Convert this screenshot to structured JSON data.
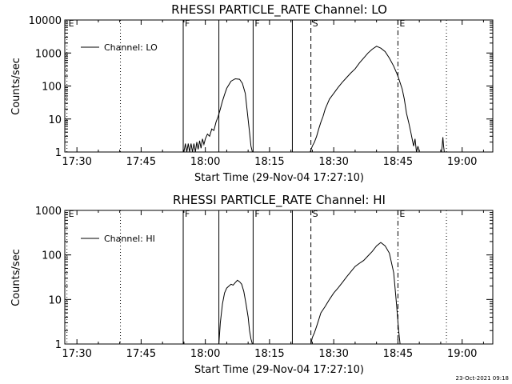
{
  "chart_data": [
    {
      "type": "line",
      "title": "RHESSI PARTICLE_RATE Channel: LO",
      "xlabel": "Start Time (29-Nov-04 17:27:10)",
      "ylabel": "Counts/sec",
      "y_scale": "log",
      "ylim": [
        1,
        10000
      ],
      "xlim": [
        "17:27:10",
        "19:07:10"
      ],
      "x_ticks": [
        "17:30",
        "17:45",
        "18:00",
        "18:15",
        "18:30",
        "18:45",
        "19:00"
      ],
      "y_ticks": [
        "1",
        "10",
        "100",
        "1000",
        "10000"
      ],
      "legend": {
        "position": "top-left",
        "entries": [
          "Channel: LO"
        ]
      },
      "markers": [
        {
          "time": "17:27:40",
          "label": "E",
          "style": "dotted"
        },
        {
          "time": "17:40:10",
          "label": "",
          "style": "dotted"
        },
        {
          "time": "17:54:50",
          "label": "F",
          "style": "solid"
        },
        {
          "time": "18:03:10",
          "label": "",
          "style": "solid"
        },
        {
          "time": "18:11:10",
          "label": "F",
          "style": "solid"
        },
        {
          "time": "18:20:20",
          "label": "",
          "style": "solid"
        },
        {
          "time": "18:24:40",
          "label": "S",
          "style": "dashed"
        },
        {
          "time": "18:45:00",
          "label": "E",
          "style": "dashdot"
        },
        {
          "time": "18:56:20",
          "label": "",
          "style": "dotted"
        }
      ],
      "series": [
        {
          "name": "Channel: LO",
          "x": [
            "17:55:00",
            "17:55:20",
            "17:55:40",
            "17:56:00",
            "17:56:20",
            "17:56:40",
            "17:57:00",
            "17:57:20",
            "17:57:40",
            "17:58:00",
            "17:58:20",
            "17:58:40",
            "17:59:00",
            "17:59:20",
            "17:59:40",
            "18:00:00",
            "18:00:30",
            "18:01:00",
            "18:01:30",
            "18:02:00",
            "18:02:30",
            "18:03:00",
            "18:03:30",
            "18:04:00",
            "18:04:30",
            "18:05:00",
            "18:06:00",
            "18:07:00",
            "18:08:00",
            "18:08:40",
            "18:09:20",
            "18:09:50",
            "18:10:20",
            "18:10:40",
            "18:11:00",
            "18:11:10"
          ],
          "y": [
            1,
            1.8,
            1,
            1.8,
            1,
            1.8,
            1,
            1.8,
            1,
            2,
            1.2,
            2.2,
            1.3,
            2.5,
            1.7,
            2.5,
            3.5,
            3,
            5,
            4.5,
            8,
            12,
            20,
            35,
            55,
            85,
            140,
            165,
            160,
            120,
            60,
            15,
            4,
            1.5,
            1,
            1
          ]
        },
        {
          "name": "Channel: LO",
          "x": [
            "18:24:30",
            "18:25:00",
            "18:25:30",
            "18:26:00",
            "18:26:30",
            "18:27:00",
            "18:27:30",
            "18:28:00",
            "18:29:00",
            "18:30:00",
            "18:31:00",
            "18:32:00",
            "18:33:00",
            "18:34:00",
            "18:35:00",
            "18:36:00",
            "18:37:00",
            "18:38:00",
            "18:39:00",
            "18:40:00",
            "18:41:00",
            "18:42:00",
            "18:43:00",
            "18:44:00",
            "18:45:00",
            "18:46:00",
            "18:46:30",
            "18:47:00",
            "18:47:30",
            "18:48:00",
            "18:48:20",
            "18:48:40",
            "18:49:00",
            "18:49:20",
            "18:49:40",
            "18:50:00"
          ],
          "y": [
            1,
            1.5,
            2,
            3,
            5,
            8,
            12,
            20,
            40,
            60,
            90,
            130,
            180,
            250,
            330,
            500,
            700,
            1000,
            1300,
            1600,
            1400,
            1100,
            700,
            400,
            200,
            80,
            40,
            15,
            8,
            4,
            2.5,
            1.5,
            2.5,
            1,
            1.5,
            1
          ]
        },
        {
          "name": "Channel: LO",
          "x": [
            "18:55:10",
            "18:55:20",
            "18:55:30",
            "18:55:40",
            "18:55:50"
          ],
          "y": [
            1,
            1.5,
            2.8,
            1.5,
            1
          ]
        }
      ]
    },
    {
      "type": "line",
      "title": "RHESSI PARTICLE_RATE Channel: HI",
      "xlabel": "Start Time (29-Nov-04 17:27:10)",
      "ylabel": "Counts/sec",
      "y_scale": "log",
      "ylim": [
        1,
        1000
      ],
      "xlim": [
        "17:27:10",
        "19:07:10"
      ],
      "x_ticks": [
        "17:30",
        "17:45",
        "18:00",
        "18:15",
        "18:30",
        "18:45",
        "19:00"
      ],
      "y_ticks": [
        "1",
        "10",
        "100",
        "1000"
      ],
      "legend": {
        "position": "top-left",
        "entries": [
          "Channel: HI"
        ]
      },
      "markers": [
        {
          "time": "17:27:40",
          "label": "E",
          "style": "dotted"
        },
        {
          "time": "17:40:10",
          "label": "",
          "style": "dotted"
        },
        {
          "time": "17:54:50",
          "label": "F",
          "style": "solid"
        },
        {
          "time": "18:03:10",
          "label": "",
          "style": "solid"
        },
        {
          "time": "18:11:10",
          "label": "F",
          "style": "solid"
        },
        {
          "time": "18:20:20",
          "label": "",
          "style": "solid"
        },
        {
          "time": "18:24:40",
          "label": "S",
          "style": "dashed"
        },
        {
          "time": "18:45:00",
          "label": "E",
          "style": "dashdot"
        },
        {
          "time": "18:56:20",
          "label": "",
          "style": "dotted"
        }
      ],
      "series": [
        {
          "name": "Channel: HI",
          "x": [
            "18:03:10",
            "18:03:30",
            "18:04:00",
            "18:04:30",
            "18:05:00",
            "18:05:30",
            "18:06:00",
            "18:06:30",
            "18:07:00",
            "18:07:30",
            "18:08:00",
            "18:08:30",
            "18:09:00",
            "18:09:30",
            "18:10:00",
            "18:10:20",
            "18:10:40",
            "18:11:00",
            "18:11:10"
          ],
          "y": [
            1,
            3,
            8,
            14,
            18,
            20,
            22,
            21,
            24,
            27,
            25,
            22,
            15,
            8,
            4,
            2,
            1.3,
            1,
            1
          ]
        },
        {
          "name": "Channel: HI",
          "x": [
            "18:24:40",
            "18:25:00",
            "18:25:30",
            "18:26:00",
            "18:26:30",
            "18:27:00",
            "18:28:00",
            "18:29:00",
            "18:30:00",
            "18:31:00",
            "18:32:00",
            "18:33:00",
            "18:34:00",
            "18:35:00",
            "18:36:00",
            "18:37:00",
            "18:38:00",
            "18:39:00",
            "18:40:00",
            "18:41:00",
            "18:42:00",
            "18:43:00",
            "18:44:00",
            "18:44:40",
            "18:45:10",
            "18:45:30"
          ],
          "y": [
            1,
            1.4,
            1.8,
            2.5,
            3.5,
            5,
            7,
            10,
            14,
            18,
            24,
            32,
            42,
            55,
            65,
            75,
            95,
            120,
            160,
            190,
            160,
            110,
            40,
            8,
            2,
            1
          ]
        }
      ]
    }
  ],
  "footer": {
    "timestamp": "23-Oct-2021 09:18"
  }
}
